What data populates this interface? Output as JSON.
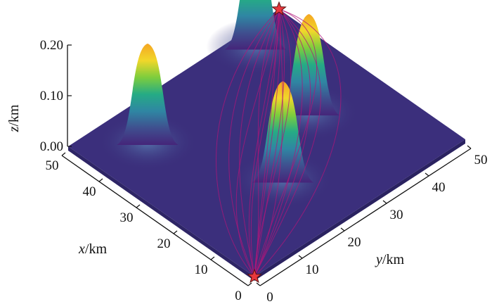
{
  "chart_data": {
    "type": "surface3d",
    "title": "",
    "axes": {
      "x": {
        "label_var": "x",
        "label_unit": "/km",
        "ticks": [
          0,
          10,
          20,
          30,
          40,
          50
        ],
        "range": [
          0,
          50
        ]
      },
      "y": {
        "label_var": "y",
        "label_unit": "/km",
        "ticks": [
          0,
          10,
          20,
          30,
          40,
          50
        ],
        "range": [
          0,
          50
        ]
      },
      "z": {
        "label_var": "z",
        "label_unit": "/km",
        "ticks": [
          "0.00",
          "0.10",
          "0.20"
        ],
        "range": [
          0,
          0.2
        ]
      }
    },
    "peaks": [
      {
        "x": 40,
        "y": 10,
        "height": 0.2
      },
      {
        "x": 45,
        "y": 40,
        "height": 0.2
      },
      {
        "x": 25,
        "y": 35,
        "height": 0.2
      },
      {
        "x": 15,
        "y": 20,
        "height": 0.2
      }
    ],
    "markers": [
      {
        "name": "start",
        "x": 0,
        "y": 0,
        "z": 0,
        "symbol": "star",
        "color": "#e8383d"
      },
      {
        "name": "goal",
        "x": 50,
        "y": 50,
        "z": 0,
        "symbol": "star",
        "color": "#e8383d"
      }
    ],
    "surface_base_color": "#3b2f7c",
    "colormap": [
      "#45257a",
      "#3f4f8f",
      "#2f86a3",
      "#25ab85",
      "#7dcd3d",
      "#f1d72a",
      "#f5a623"
    ],
    "path_color": "#b0157a",
    "grid": false,
    "legend": "none"
  }
}
